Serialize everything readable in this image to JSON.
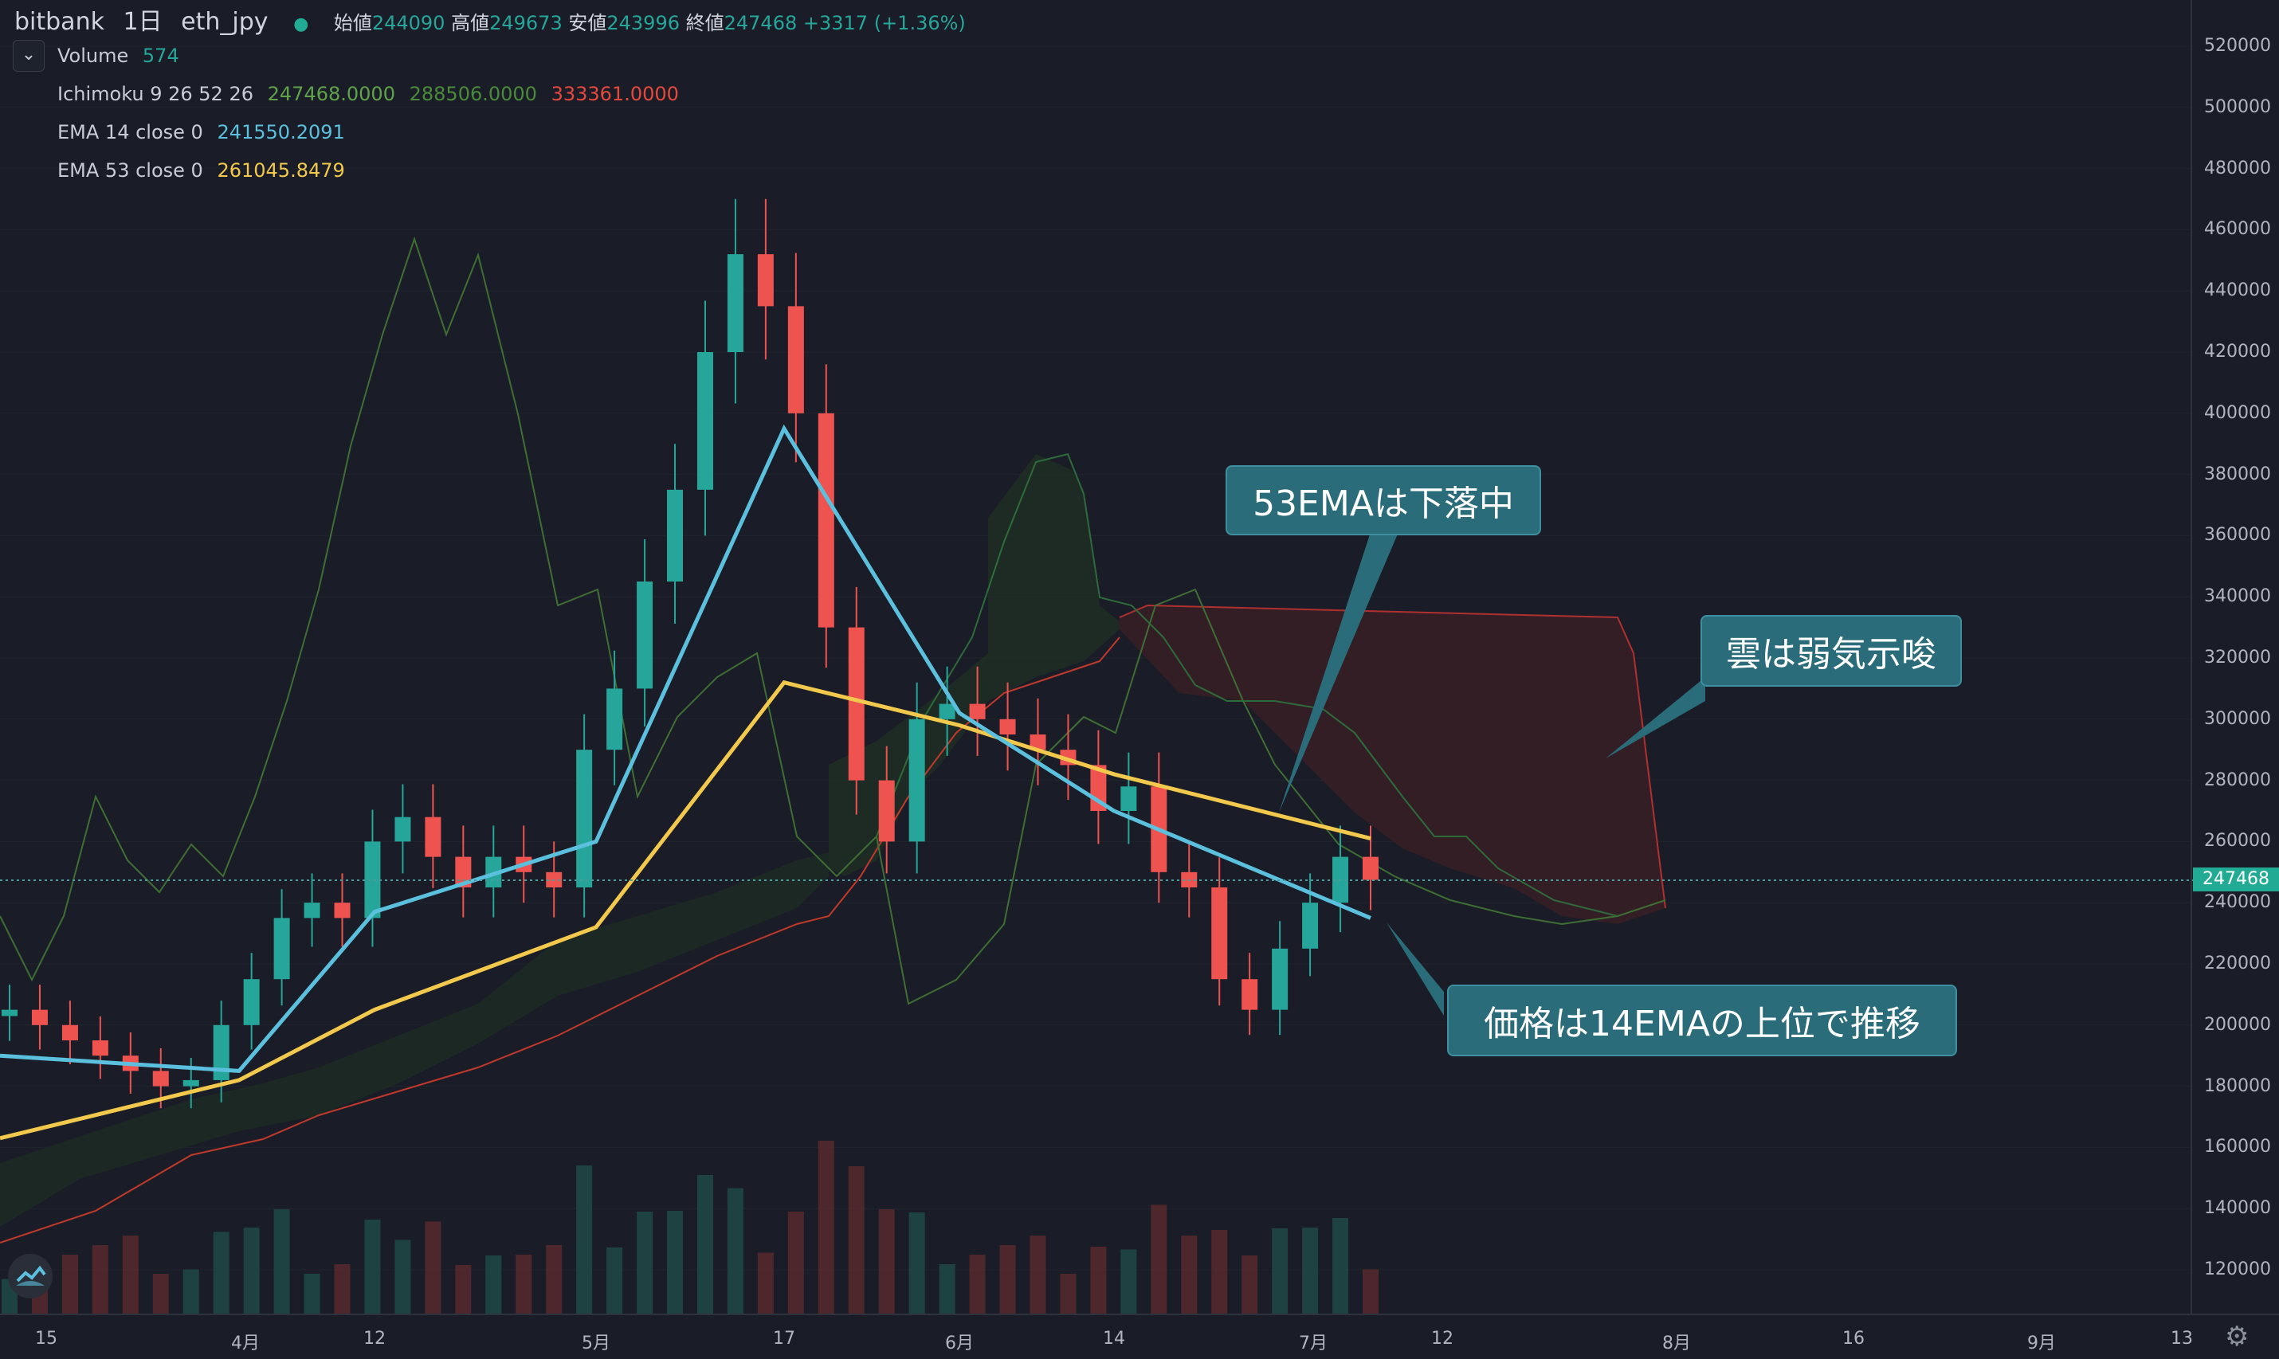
{
  "header": {
    "exchange": "bitbank",
    "timeframe": "1日",
    "symbol": "eth_jpy",
    "open_label": "始値",
    "open": "244090",
    "high_label": "高値",
    "high": "249673",
    "low_label": "安値",
    "low": "243996",
    "close_label": "終値",
    "close": "247468",
    "change": "+3317 (+1.36%)"
  },
  "legend": {
    "volume_label": "Volume",
    "volume_value": "574",
    "ichimoku_label": "Ichimoku 9 26 52 26",
    "ichimoku_v1": "247468.0000",
    "ichimoku_v2": "288506.0000",
    "ichimoku_v3": "333361.0000",
    "ema14_label": "EMA 14 close 0",
    "ema14_value": "241550.2091",
    "ema53_label": "EMA 53 close 0",
    "ema53_value": "261045.8479"
  },
  "price_axis": {
    "ticks": [
      "520000",
      "500000",
      "480000",
      "460000",
      "440000",
      "420000",
      "400000",
      "380000",
      "360000",
      "340000",
      "320000",
      "300000",
      "280000",
      "260000",
      "240000",
      "220000",
      "200000",
      "180000",
      "160000",
      "140000",
      "120000"
    ],
    "last_price": "247468"
  },
  "time_axis": {
    "ticks": [
      "15",
      "4月",
      "12",
      "5月",
      "17",
      "6月",
      "14",
      "7月",
      "12",
      "8月",
      "16",
      "9月",
      "13"
    ]
  },
  "annotations": {
    "ema53": "53EMAは下落中",
    "cloud": "雲は弱気示唆",
    "price": "価格は14EMAの上位で推移"
  },
  "colors": {
    "background": "#1a1d27",
    "up": "#26a69a",
    "down": "#ef5350",
    "ema14": "#5bc0de",
    "ema53": "#f2c94c",
    "callout": "#2b6c7a",
    "ichimoku_green": "#3f7a3a",
    "ichimoku_red": "#c0392b"
  },
  "chart_data": {
    "type": "candlestick",
    "series": [
      {
        "name": "EMA 14 close 0",
        "x": [
          "15",
          "4月",
          "12",
          "5月",
          "17",
          "6月",
          "14",
          "7月"
        ],
        "values": [
          190000,
          185000,
          237000,
          260000,
          395000,
          302000,
          270000,
          235000
        ]
      },
      {
        "name": "EMA 53 close 0",
        "x": [
          "15",
          "4月",
          "12",
          "5月",
          "17",
          "6月",
          "14",
          "7月"
        ],
        "values": [
          163000,
          182000,
          205000,
          232000,
          312000,
          298000,
          282000,
          261000
        ]
      }
    ],
    "candles_close": [
      205000,
      200000,
      195000,
      190000,
      185000,
      180000,
      182000,
      200000,
      215000,
      235000,
      240000,
      235000,
      260000,
      268000,
      255000,
      245000,
      255000,
      250000,
      245000,
      290000,
      310000,
      345000,
      375000,
      420000,
      452000,
      435000,
      400000,
      330000,
      280000,
      260000,
      300000,
      305000,
      300000,
      295000,
      290000,
      285000,
      270000,
      278000,
      250000,
      245000,
      215000,
      205000,
      225000,
      240000,
      255000,
      247468
    ],
    "ylim": [
      110000,
      530000
    ]
  }
}
